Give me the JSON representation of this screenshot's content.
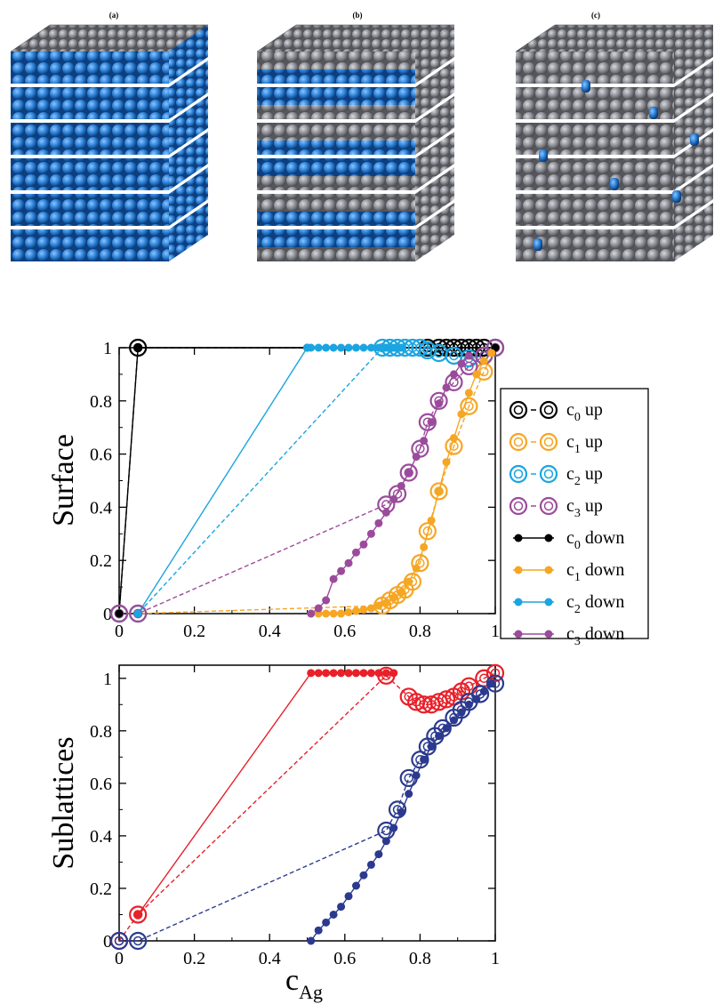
{
  "panels": [
    {
      "label": "(a)",
      "sphere_colors": {
        "top": "#8e8f95",
        "layer_a": "#2a7fd4",
        "layer_b": "#2a7fd4"
      }
    },
    {
      "label": "(b)",
      "sphere_colors": {
        "top": "#8e8f95",
        "layer_a": "#8e8f95",
        "layer_b": "#2a7fd4"
      }
    },
    {
      "label": "(c)",
      "sphere_colors": {
        "top": "#8e8f95",
        "layer_a": "#8e8f95",
        "layer_b": "#8e8f95",
        "defect": "#2a7fd4"
      }
    }
  ],
  "chart_data": [
    {
      "type": "line",
      "ylabel": "Surface",
      "xlabel": "",
      "xlim": [
        0,
        1
      ],
      "ylim": [
        0,
        1
      ],
      "xticks": [
        "0",
        "0.2",
        "0.4",
        "0.6",
        "0.8",
        "1"
      ],
      "yticks": [
        "0",
        "0.2",
        "0.4",
        "0.6",
        "0.8",
        "1"
      ],
      "legend_position": "right, outside",
      "series": [
        {
          "name": "c0 up",
          "sym": "c",
          "sub": "0",
          "suffix": " up",
          "color": "#000000",
          "style": "dashed",
          "marker": "ring",
          "x": [
            0,
            0.05,
            0.82,
            0.85,
            0.87,
            0.89,
            0.91,
            0.93,
            0.95,
            0.97,
            1.0
          ],
          "y": [
            0,
            1,
            1,
            1,
            1,
            1,
            1,
            1,
            1,
            1,
            1
          ]
        },
        {
          "name": "c1 up",
          "sym": "c",
          "sub": "1",
          "suffix": " up",
          "color": "#f5a623",
          "style": "dashed",
          "marker": "ring",
          "x": [
            0,
            0.05,
            0.7,
            0.72,
            0.74,
            0.76,
            0.78,
            0.8,
            0.82,
            0.85,
            0.89,
            0.93,
            0.97,
            1.0
          ],
          "y": [
            0,
            0,
            0.03,
            0.05,
            0.07,
            0.09,
            0.12,
            0.19,
            0.31,
            0.46,
            0.63,
            0.78,
            0.91,
            1.0
          ]
        },
        {
          "name": "c2 up",
          "sym": "c",
          "sub": "2",
          "suffix": " up",
          "color": "#1ba5e0",
          "style": "dashed",
          "marker": "ring",
          "x": [
            0,
            0.05,
            0.7,
            0.72,
            0.74,
            0.76,
            0.78,
            0.8,
            0.82,
            0.85,
            0.89,
            0.93,
            0.97,
            1.0
          ],
          "y": [
            0,
            0,
            1,
            1,
            1,
            1,
            1,
            1,
            0.99,
            0.98,
            0.97,
            0.96,
            0.97,
            1.0
          ]
        },
        {
          "name": "c3 up",
          "sym": "c",
          "sub": "3",
          "suffix": "  up",
          "color": "#9b4b9b",
          "style": "dashed",
          "marker": "ring",
          "x": [
            0,
            0.05,
            0.71,
            0.74,
            0.77,
            0.8,
            0.82,
            0.85,
            0.89,
            0.93,
            0.97,
            1.0
          ],
          "y": [
            0,
            0,
            0.41,
            0.45,
            0.53,
            0.62,
            0.72,
            0.8,
            0.87,
            0.93,
            0.97,
            1.0
          ]
        },
        {
          "name": "c0 down",
          "sym": "c",
          "sub": "0",
          "suffix": " down",
          "color": "#000000",
          "style": "solid",
          "marker": "dot",
          "x": [
            0,
            0.05,
            0.5,
            1.0
          ],
          "y": [
            0,
            1,
            1,
            1
          ]
        },
        {
          "name": "c1 down",
          "sym": "c",
          "sub": "1",
          "suffix": " down",
          "color": "#f5a623",
          "style": "solid",
          "marker": "dot",
          "x": [
            0.51,
            0.53,
            0.55,
            0.57,
            0.59,
            0.61,
            0.63,
            0.65,
            0.67,
            0.69,
            0.71,
            0.73,
            0.75,
            0.77,
            0.79,
            0.81,
            0.83,
            0.85,
            0.87,
            0.89,
            0.91,
            0.93,
            0.95,
            0.97,
            0.99
          ],
          "y": [
            0,
            0,
            0,
            0,
            0,
            0.005,
            0.01,
            0.015,
            0.02,
            0.03,
            0.04,
            0.06,
            0.08,
            0.12,
            0.17,
            0.25,
            0.35,
            0.46,
            0.57,
            0.66,
            0.75,
            0.83,
            0.9,
            0.95,
            0.98
          ]
        },
        {
          "name": "c2 down",
          "sym": "c",
          "sub": "2",
          "suffix": " down",
          "color": "#1ba5e0",
          "style": "solid",
          "marker": "dot",
          "x": [
            0.05,
            0.5,
            0.51,
            0.53,
            0.55,
            0.57,
            0.59,
            0.61,
            0.63,
            0.65,
            0.67,
            0.69,
            0.71,
            0.73,
            0.75
          ],
          "y": [
            0,
            1,
            1,
            1,
            1,
            1,
            1,
            1,
            1,
            1,
            1,
            1,
            1,
            1,
            1
          ]
        },
        {
          "name": "c3 down",
          "sym": "c",
          "sub": "3",
          "suffix": " down",
          "color": "#9b4b9b",
          "style": "solid",
          "marker": "dot",
          "x": [
            0.51,
            0.53,
            0.55,
            0.57,
            0.59,
            0.61,
            0.63,
            0.65,
            0.67,
            0.69,
            0.71,
            0.73,
            0.75,
            0.77,
            0.79,
            0.81,
            0.83,
            0.85,
            0.87,
            0.89,
            0.91,
            0.93
          ],
          "y": [
            0,
            0.02,
            0.05,
            0.13,
            0.16,
            0.19,
            0.23,
            0.26,
            0.3,
            0.34,
            0.38,
            0.43,
            0.48,
            0.53,
            0.59,
            0.65,
            0.72,
            0.79,
            0.85,
            0.9,
            0.94,
            0.97
          ]
        }
      ]
    },
    {
      "type": "line",
      "ylabel": "Sublattices",
      "xlabel_main": "c",
      "xlabel_sub": "Ag",
      "xlim": [
        0,
        1
      ],
      "ylim": [
        0,
        1.05
      ],
      "xticks": [
        "0",
        "0.2",
        "0.4",
        "0.6",
        "0.8",
        "1"
      ],
      "yticks": [
        "0",
        "0.2",
        "0.4",
        "0.6",
        "0.8",
        "1"
      ],
      "series": [
        {
          "name": "red up",
          "color": "#e8202a",
          "style": "dashed",
          "marker": "ring",
          "x": [
            0,
            0.05,
            0.71,
            0.77,
            0.79,
            0.81,
            0.83,
            0.85,
            0.87,
            0.89,
            0.91,
            0.93,
            0.97,
            1.0
          ],
          "y": [
            0,
            0.1,
            1.01,
            0.93,
            0.91,
            0.9,
            0.9,
            0.91,
            0.92,
            0.93,
            0.95,
            0.97,
            1.0,
            1.02
          ]
        },
        {
          "name": "red down",
          "color": "#e8202a",
          "style": "solid",
          "marker": "dot",
          "x": [
            0.05,
            0.51,
            0.53,
            0.55,
            0.57,
            0.59,
            0.61,
            0.63,
            0.65,
            0.67,
            0.69,
            0.71,
            0.73
          ],
          "y": [
            0.1,
            1.02,
            1.02,
            1.02,
            1.02,
            1.02,
            1.02,
            1.02,
            1.02,
            1.02,
            1.02,
            1.02,
            1.02
          ]
        },
        {
          "name": "blue up",
          "color": "#2b3a8f",
          "style": "dashed",
          "marker": "ring",
          "x": [
            0,
            0.05,
            0.71,
            0.74,
            0.77,
            0.8,
            0.82,
            0.84,
            0.86,
            0.89,
            0.91,
            0.93,
            0.96,
            1.0
          ],
          "y": [
            0,
            0,
            0.42,
            0.5,
            0.62,
            0.69,
            0.74,
            0.78,
            0.81,
            0.85,
            0.88,
            0.91,
            0.94,
            0.98
          ]
        },
        {
          "name": "blue down",
          "color": "#2b3a8f",
          "style": "solid",
          "marker": "dot",
          "x": [
            0.51,
            0.53,
            0.55,
            0.57,
            0.59,
            0.61,
            0.63,
            0.65,
            0.67,
            0.69,
            0.71,
            0.73,
            0.75,
            0.77,
            0.79,
            0.81,
            0.83,
            0.85,
            0.87,
            0.89,
            0.91,
            0.93,
            0.95,
            0.97,
            0.99
          ],
          "y": [
            0,
            0.04,
            0.07,
            0.1,
            0.13,
            0.17,
            0.21,
            0.25,
            0.29,
            0.33,
            0.38,
            0.43,
            0.49,
            0.56,
            0.63,
            0.69,
            0.74,
            0.78,
            0.81,
            0.84,
            0.87,
            0.9,
            0.92,
            0.95,
            0.98
          ]
        }
      ]
    }
  ]
}
